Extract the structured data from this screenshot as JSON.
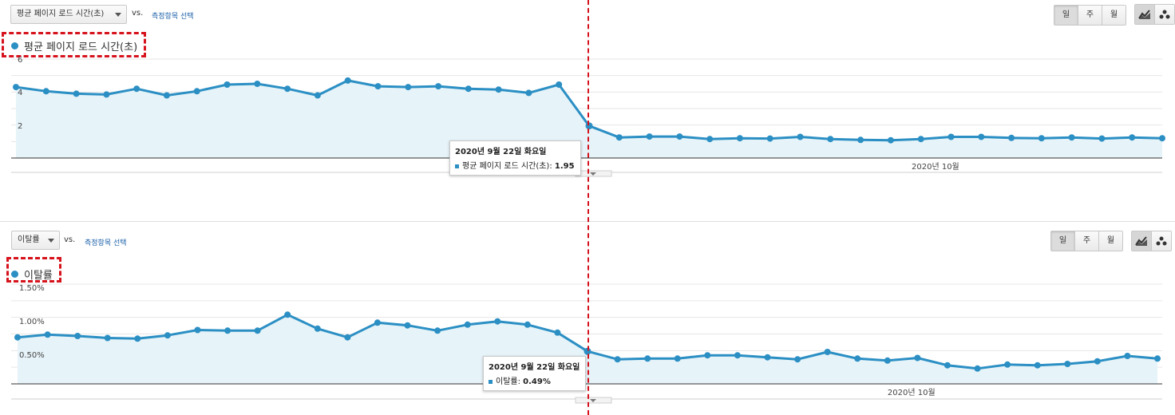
{
  "panel1": {
    "metric_label": "평균 페이지 로드 시간(초)",
    "vs": "vs.",
    "compare_link": "측정항목 선택",
    "period_buttons": [
      "일",
      "주",
      "월"
    ],
    "active_period": "일",
    "legend": "평균 페이지 로드 시간(초)",
    "tooltip": {
      "date": "2020년 9월 22일 화요일",
      "metric": "평균 페이지 로드 시간(초):",
      "value": "1.95"
    }
  },
  "panel2": {
    "metric_label": "이탈률",
    "vs": "vs.",
    "compare_link": "측정항목 선택",
    "period_buttons": [
      "일",
      "주",
      "월"
    ],
    "active_period": "일",
    "legend": "이탈률",
    "tooltip": {
      "date": "2020년 9월 22일 화요일",
      "metric": "이탈률:",
      "value": "0.49%"
    }
  },
  "icons": {
    "line_chart": "line-chart-icon",
    "motion_chart": "motion-chart-icon",
    "dropdown": "chevron-down-icon"
  },
  "colors": {
    "series": "#2b8fc4",
    "area_fill": "#e6f3f8",
    "highlight": "#d6121c",
    "grid": "#e6e6e6"
  },
  "chart_data": [
    {
      "type": "area",
      "title": "평균 페이지 로드 시간(초)",
      "series": [
        {
          "name": "평균 페이지 로드 시간(초)",
          "values": [
            4.3,
            4.05,
            3.9,
            3.85,
            4.2,
            3.8,
            4.05,
            4.45,
            4.5,
            4.2,
            3.8,
            4.7,
            4.35,
            4.3,
            4.35,
            4.2,
            4.15,
            3.95,
            4.45,
            1.95,
            1.25,
            1.3,
            1.3,
            1.15,
            1.2,
            1.18,
            1.28,
            1.15,
            1.1,
            1.08,
            1.15,
            1.28,
            1.28,
            1.22,
            1.2,
            1.25,
            1.18,
            1.25,
            1.2
          ]
        }
      ],
      "x_start_date": "2020-09-03",
      "highlight_index": 19,
      "yticks": [
        "2",
        "4",
        "6"
      ],
      "ylim": [
        0,
        6
      ],
      "x_label": "2020년 10월",
      "x_label_index": 29,
      "grid": true
    },
    {
      "type": "area",
      "title": "이탈률",
      "series": [
        {
          "name": "이탈률",
          "values": [
            0.7,
            0.74,
            0.72,
            0.69,
            0.68,
            0.73,
            0.81,
            0.8,
            0.8,
            1.04,
            0.83,
            0.7,
            0.92,
            0.88,
            0.8,
            0.89,
            0.94,
            0.89,
            0.77,
            0.49,
            0.37,
            0.38,
            0.38,
            0.43,
            0.43,
            0.4,
            0.37,
            0.48,
            0.38,
            0.35,
            0.39,
            0.28,
            0.23,
            0.29,
            0.28,
            0.3,
            0.34,
            0.42,
            0.38
          ]
        }
      ],
      "x_start_date": "2020-09-03",
      "highlight_index": 19,
      "yticks": [
        "0.50%",
        "1.00%",
        "1.50%"
      ],
      "ylim": [
        0,
        1.5
      ],
      "x_label": "2020년 10월",
      "x_label_index": 29,
      "grid": true
    }
  ]
}
